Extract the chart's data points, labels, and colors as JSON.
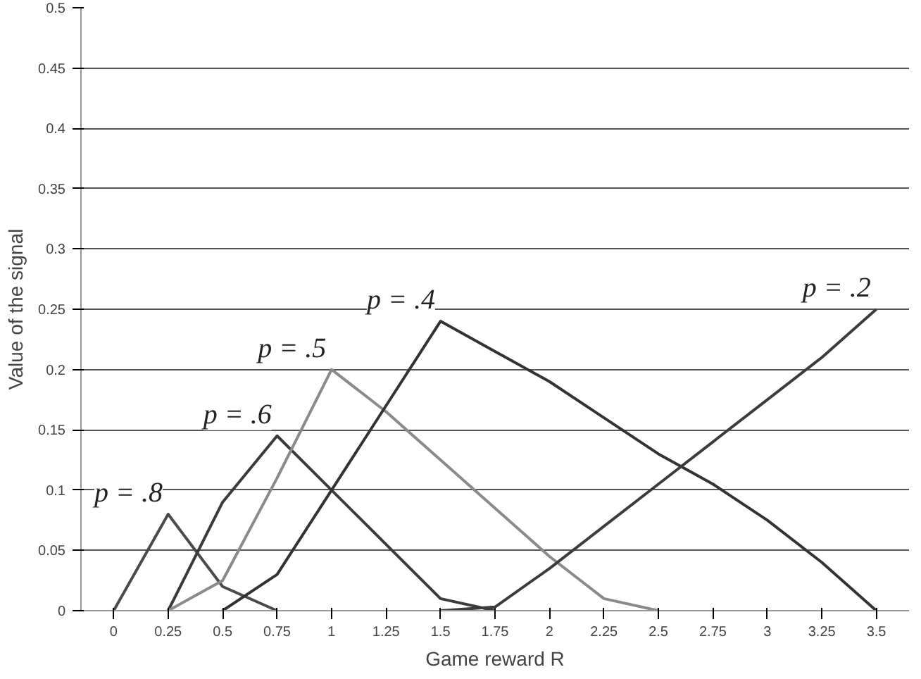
{
  "chart_data": {
    "type": "line",
    "xlabel": "Game reward R",
    "ylabel": "Value of the signal",
    "categories": [
      "0",
      "0.25",
      "0.5",
      "0.75",
      "1",
      "1.25",
      "1.5",
      "1.75",
      "2",
      "2.25",
      "2.5",
      "2.75",
      "3",
      "3.25",
      "3.5"
    ],
    "ylim": [
      0,
      0.5
    ],
    "yticks": [
      0,
      0.05,
      0.1,
      0.15,
      0.2,
      0.25,
      0.3,
      0.35,
      0.4,
      0.45,
      0.5
    ],
    "grid": "y",
    "marker": "none",
    "line_style": "solid",
    "series": [
      {
        "name": "p = .8",
        "color": "#4a4a4a",
        "values": [
          0,
          0.08,
          0.02,
          0,
          null,
          null,
          null,
          null,
          null,
          null,
          null,
          null,
          null,
          null,
          null
        ]
      },
      {
        "name": "p = .6",
        "color": "#3a3a3a",
        "values": [
          null,
          0,
          0.09,
          0.145,
          0.1,
          0.055,
          0.01,
          0,
          null,
          null,
          null,
          null,
          null,
          null,
          null
        ]
      },
      {
        "name": "p = .5",
        "color": "#8a8a8a",
        "values": [
          null,
          0,
          0.025,
          0.11,
          0.2,
          0.165,
          0.125,
          0.085,
          0.045,
          0.01,
          0,
          null,
          null,
          null,
          null
        ]
      },
      {
        "name": "p = .4",
        "color": "#333333",
        "values": [
          null,
          null,
          0,
          0.03,
          0.1,
          0.17,
          0.24,
          0.215,
          0.19,
          0.16,
          0.13,
          0.105,
          0.075,
          0.04,
          0
        ]
      },
      {
        "name": "p = .2",
        "color": "#3c3c3c",
        "values": [
          null,
          null,
          null,
          null,
          null,
          null,
          0,
          0.003,
          0.035,
          0.07,
          0.105,
          0.14,
          0.175,
          0.21,
          0.25
        ]
      }
    ]
  }
}
